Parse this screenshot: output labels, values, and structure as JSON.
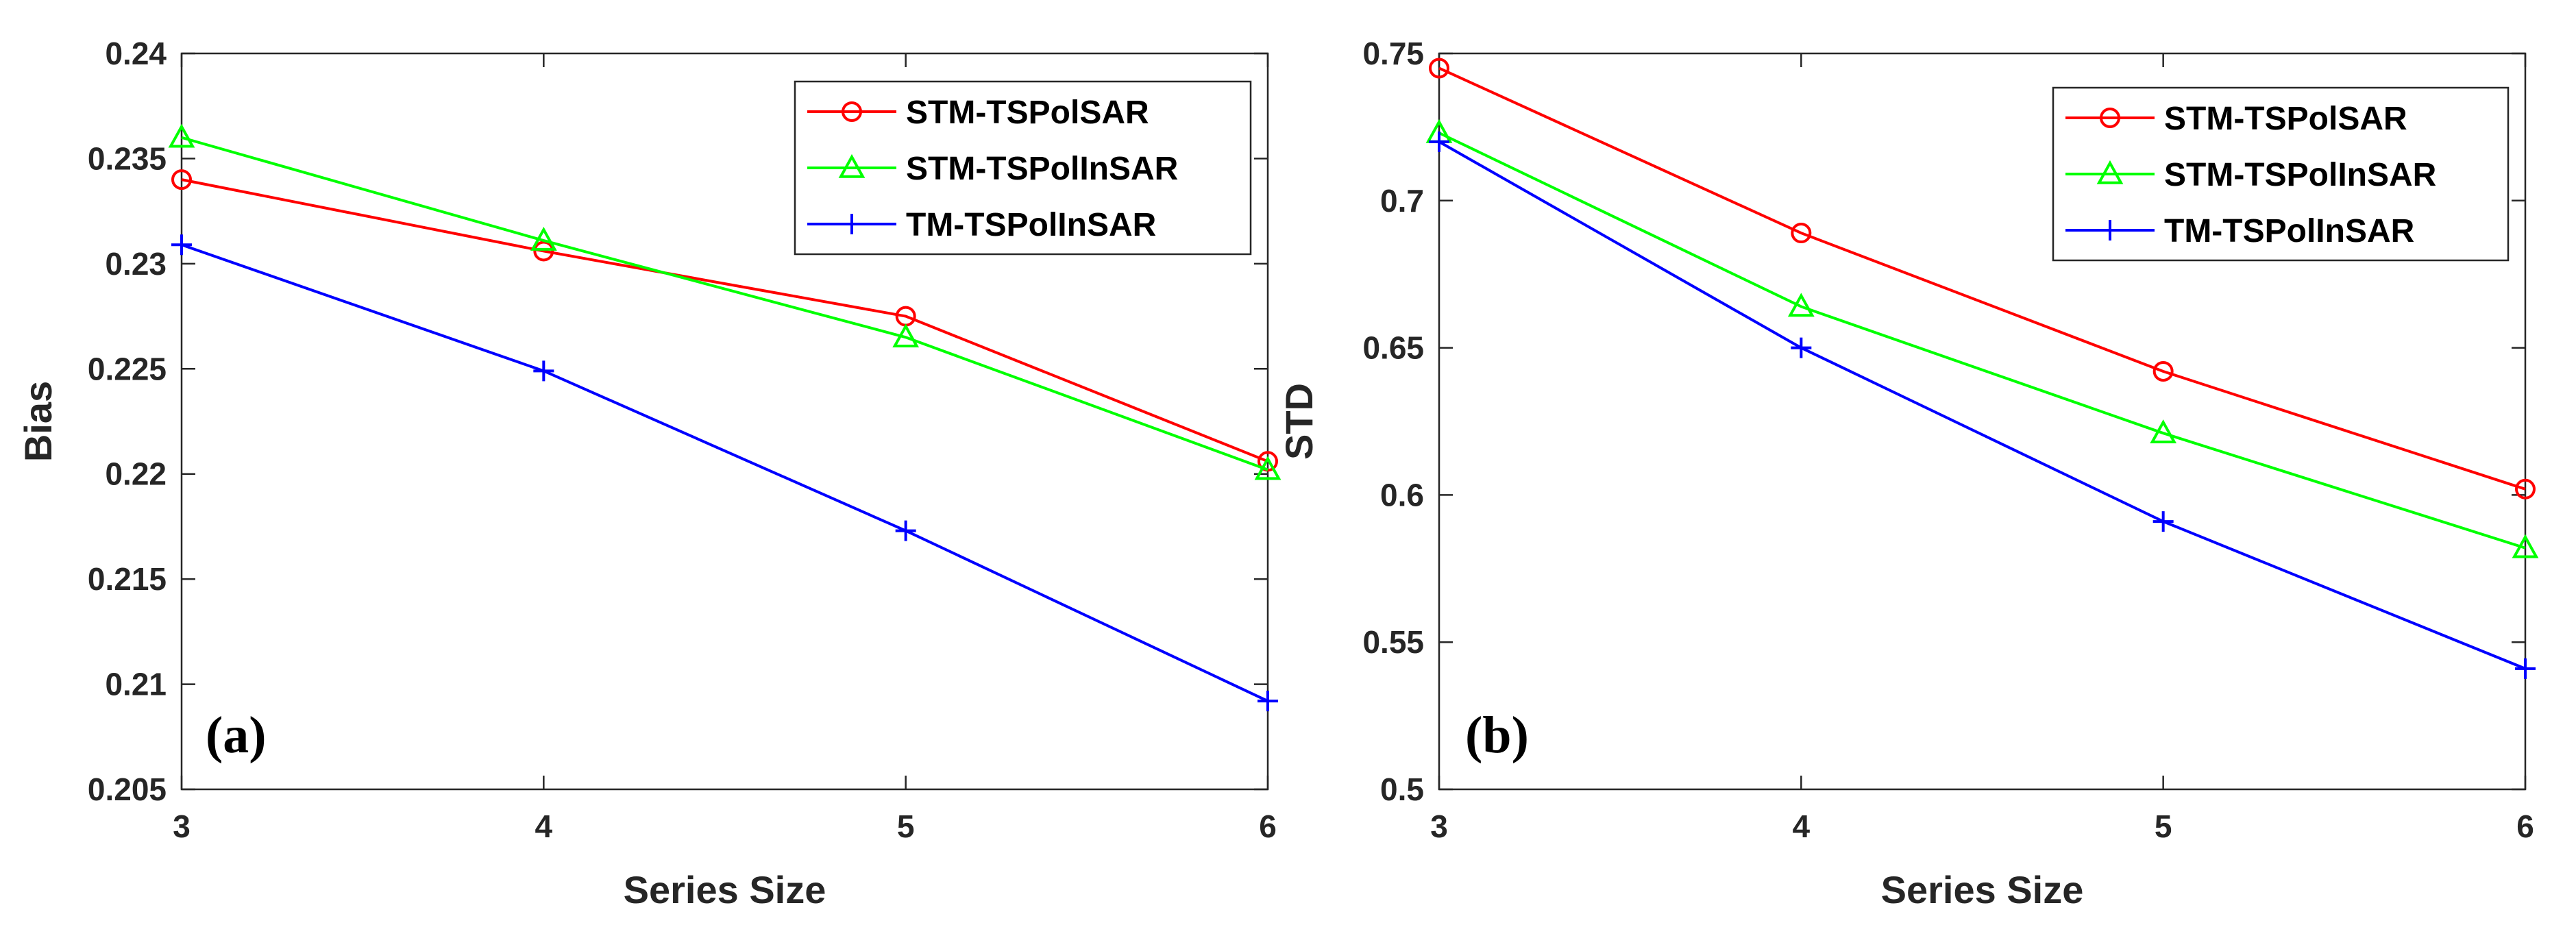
{
  "chart_data": [
    {
      "type": "line",
      "panel_label": "(a)",
      "xlabel": "Series Size",
      "ylabel": "Bias",
      "categories": [
        3,
        4,
        5,
        6
      ],
      "xlim": [
        3,
        6
      ],
      "ylim": [
        0.205,
        0.24
      ],
      "xticks": [
        "3",
        "4",
        "5",
        "6"
      ],
      "yticks": [
        "0.205",
        "0.21",
        "0.215",
        "0.22",
        "0.225",
        "0.23",
        "0.235",
        "0.24"
      ],
      "legend_position": "top-right",
      "grid": false,
      "series": [
        {
          "name": "STM-TSPolSAR",
          "color": "#ff0000",
          "marker": "circle",
          "values": [
            0.234,
            0.2306,
            0.2275,
            0.2206
          ]
        },
        {
          "name": "STM-TSPolInSAR",
          "color": "#00ff00",
          "marker": "triangle",
          "values": [
            0.236,
            0.2311,
            0.2265,
            0.2202
          ]
        },
        {
          "name": "TM-TSPolInSAR",
          "color": "#0000ff",
          "marker": "plus",
          "values": [
            0.2309,
            0.2249,
            0.2173,
            0.2092
          ]
        }
      ]
    },
    {
      "type": "line",
      "panel_label": "(b)",
      "xlabel": "Series Size",
      "ylabel": "STD",
      "categories": [
        3,
        4,
        5,
        6
      ],
      "xlim": [
        3,
        6
      ],
      "ylim": [
        0.5,
        0.75
      ],
      "xticks": [
        "3",
        "4",
        "5",
        "6"
      ],
      "yticks": [
        "0.5",
        "0.55",
        "0.6",
        "0.65",
        "0.7",
        "0.75"
      ],
      "legend_position": "top-right",
      "grid": false,
      "series": [
        {
          "name": "STM-TSPolSAR",
          "color": "#ff0000",
          "marker": "circle",
          "values": [
            0.745,
            0.689,
            0.642,
            0.602
          ]
        },
        {
          "name": "STM-TSPolInSAR",
          "color": "#00ff00",
          "marker": "triangle",
          "values": [
            0.723,
            0.664,
            0.621,
            0.582
          ]
        },
        {
          "name": "TM-TSPolInSAR",
          "color": "#0000ff",
          "marker": "plus",
          "values": [
            0.72,
            0.65,
            0.591,
            0.541
          ]
        }
      ]
    }
  ]
}
